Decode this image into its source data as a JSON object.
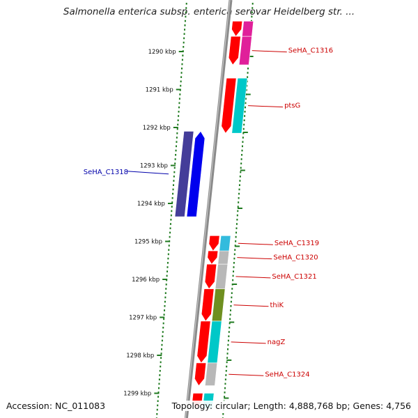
{
  "header": {
    "title": "Salmonella enterica subsp. enterica serovar Heidelberg str. ..."
  },
  "footer": {
    "accession": "Accession: NC_011083",
    "summary": "Topology: circular; Length: 4,888,768 bp; Genes: 4,756"
  },
  "colors": {
    "backbone": "#8a8a8a",
    "tick": "#1f7a1f",
    "label_red": "#cc0000",
    "label_blue": "#0000aa"
  },
  "ticks": [
    {
      "label": "1290 kbp",
      "kbp": 1290
    },
    {
      "label": "1291 kbp",
      "kbp": 1291
    },
    {
      "label": "1292 kbp",
      "kbp": 1292
    },
    {
      "label": "1293 kbp",
      "kbp": 1293
    },
    {
      "label": "1294 kbp",
      "kbp": 1294
    },
    {
      "label": "1295 kbp",
      "kbp": 1295
    },
    {
      "label": "1296 kbp",
      "kbp": 1296
    },
    {
      "label": "1297 kbp",
      "kbp": 1297
    },
    {
      "label": "1298 kbp",
      "kbp": 1298
    },
    {
      "label": "1299 kbp",
      "kbp": 1299
    }
  ],
  "genes": [
    {
      "name": "",
      "strand": "+",
      "start_kbp": 1289.2,
      "end_kbp": 1289.6,
      "color": "#ff0000",
      "cog_color": "#e0209a"
    },
    {
      "name": "SeHA_C1316",
      "strand": "+",
      "start_kbp": 1289.6,
      "end_kbp": 1290.35,
      "color": "#ff0000",
      "cog_color": "#e0209a",
      "label_color": "#cc0000"
    },
    {
      "name": "ptsG",
      "strand": "+",
      "start_kbp": 1290.7,
      "end_kbp": 1292.15,
      "color": "#ff0000",
      "cog_color": "#00c8c8",
      "label_color": "#cc0000"
    },
    {
      "name": "SeHA_C1318",
      "strand": "-",
      "start_kbp": 1292.1,
      "end_kbp": 1294.35,
      "color": "#0000ee",
      "cog_color": "#443d99",
      "label_color": "#0000aa"
    },
    {
      "name": "SeHA_C1319",
      "strand": "+",
      "start_kbp": 1294.85,
      "end_kbp": 1295.25,
      "color": "#ff0000",
      "cog_color": "#33bbdd",
      "label_color": "#cc0000"
    },
    {
      "name": "SeHA_C1320",
      "strand": "+",
      "start_kbp": 1295.25,
      "end_kbp": 1295.6,
      "color": "#ff0000",
      "cog_color": "#b8b8b8",
      "label_color": "#cc0000"
    },
    {
      "name": "SeHA_C1321",
      "strand": "+",
      "start_kbp": 1295.6,
      "end_kbp": 1296.25,
      "color": "#ff0000",
      "cog_color": "#b8b8b8",
      "label_color": "#cc0000"
    },
    {
      "name": "thiK",
      "strand": "+",
      "start_kbp": 1296.25,
      "end_kbp": 1297.1,
      "color": "#ff0000",
      "cog_color": "#6f8f20",
      "label_color": "#cc0000"
    },
    {
      "name": "nagZ",
      "strand": "+",
      "start_kbp": 1297.1,
      "end_kbp": 1298.2,
      "color": "#ff0000",
      "cog_color": "#00c8c8",
      "label_color": "#cc0000"
    },
    {
      "name": "SeHA_C1324",
      "strand": "+",
      "start_kbp": 1298.2,
      "end_kbp": 1298.8,
      "color": "#ff0000",
      "cog_color": "#b8b8b8",
      "label_color": "#cc0000"
    },
    {
      "name": "",
      "strand": "+",
      "start_kbp": 1299.0,
      "end_kbp": 1299.4,
      "color": "#ff0000",
      "cog_color": "#00c8c8"
    }
  ]
}
